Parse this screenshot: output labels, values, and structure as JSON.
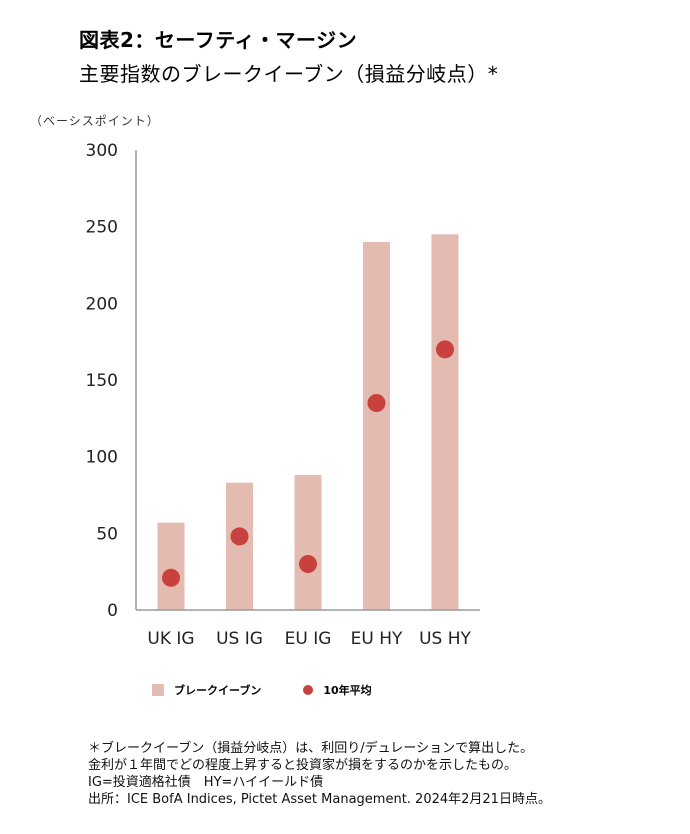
{
  "header": {
    "title_line1": "図表2：セーフティ・マージン",
    "title_line2": "主要指数のブレークイーブン（損益分岐点）*",
    "unit_label": "（ベーシスポイント）"
  },
  "chart_data": {
    "type": "bar",
    "categories": [
      "UK IG",
      "US IG",
      "EU IG",
      "EU HY",
      "US HY"
    ],
    "series": [
      {
        "name": "ブレークイーブン",
        "kind": "bar",
        "values": [
          57,
          83,
          88,
          240,
          245
        ]
      },
      {
        "name": "10年平均",
        "kind": "scatter",
        "values": [
          21,
          48,
          30,
          135,
          170
        ]
      }
    ],
    "yticks": [
      0,
      50,
      100,
      150,
      200,
      250,
      300
    ],
    "ylim": [
      0,
      300
    ],
    "grid": false,
    "legend_position": "bottom-left",
    "colors": {
      "bar": "#e3bbb1",
      "dot": "#c9413c",
      "axis": "#9a9a9a"
    }
  },
  "legend": {
    "items": [
      "ブレークイーブン",
      "10年平均"
    ]
  },
  "notes": [
    "＊ブレークイーブン（損益分岐点）は、利回り/デュレーションで算出した。",
    "金利が１年間でどの程度上昇すると投資家が損をするのかを示したもの。",
    "IG=投資適格社債　HY=ハイイールド債",
    "出所：ICE BofA Indices, Pictet Asset Management. 2024年2月21日時点。"
  ]
}
